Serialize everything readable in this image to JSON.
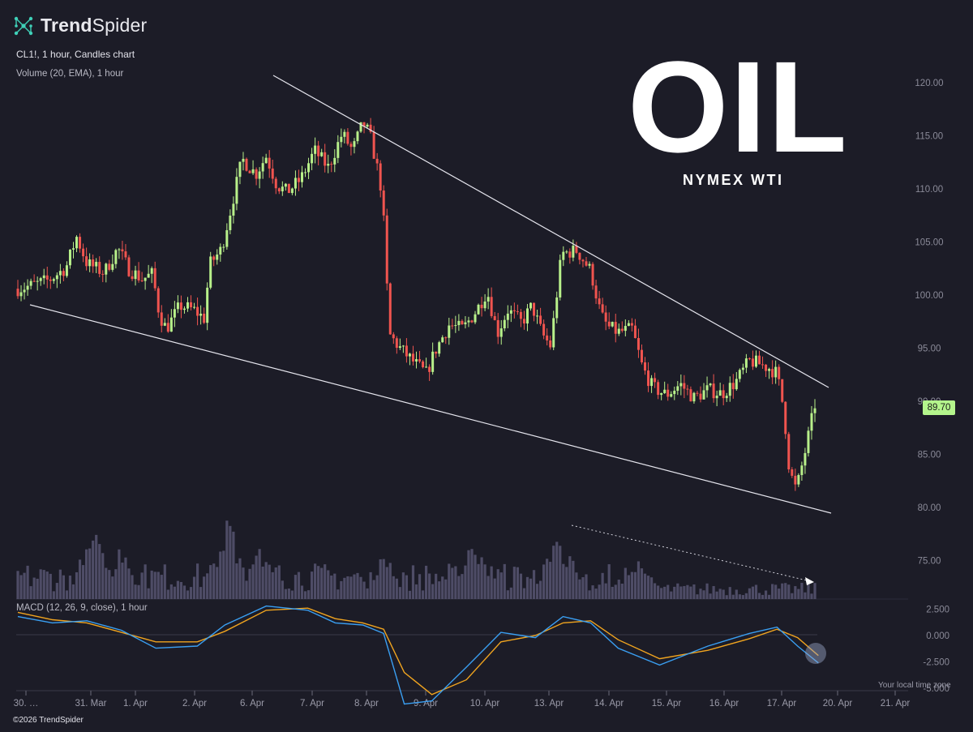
{
  "brand": {
    "name_bold": "Trend",
    "name_light": "Spider",
    "logo_icon": "trendspider-network-icon"
  },
  "header": {
    "symbol_info": "CL1!, 1 hour, Candles chart",
    "volume_info": "Volume (20, EMA), 1 hour"
  },
  "overlay": {
    "title": "OIL",
    "subtitle": "NYMEX WTI"
  },
  "macd_label": "MACD (12, 26, 9, close), 1 hour",
  "local_time_label": "Your local time zone",
  "copyright": "©2026 TrendSpider",
  "last_price": "89.70",
  "colors": {
    "background": "#1c1c27",
    "bull": "#b8f08a",
    "bear": "#f0544f",
    "volume": "#4e4c66",
    "macd_line": "#3a9ff2",
    "signal_line": "#f0a41f",
    "trendline": "#e6e6ee"
  },
  "chart_data": [
    {
      "type": "candlestick",
      "symbol": "CL1!",
      "interval": "1 hour",
      "y_axis": {
        "range": [
          72,
          122
        ],
        "ticks": [
          "120.00",
          "115.00",
          "110.00",
          "105.00",
          "100.00",
          "95.00",
          "90.00",
          "85.00",
          "80.00",
          "75.00"
        ]
      },
      "x_axis": {
        "ticks": [
          "30. …",
          "31. Mar",
          "1. Apr",
          "2. Apr",
          "6. Apr",
          "7. Apr",
          "8. Apr",
          "9. Apr",
          "10. Apr",
          "13. Apr",
          "14. Apr",
          "15. Apr",
          "16. Apr",
          "17. Apr",
          "20. Apr",
          "21. Apr"
        ]
      },
      "price_path_day_index_close": [
        [
          0.0,
          100.6
        ],
        [
          0.2,
          100.9
        ],
        [
          0.45,
          101.4
        ],
        [
          0.7,
          102.6
        ],
        [
          0.85,
          105.5
        ],
        [
          1.0,
          103.0
        ],
        [
          1.25,
          102.1
        ],
        [
          1.45,
          104.4
        ],
        [
          1.6,
          102.5
        ],
        [
          1.8,
          101.5
        ],
        [
          1.95,
          102.0
        ],
        [
          2.05,
          98.2
        ],
        [
          2.15,
          96.8
        ],
        [
          2.35,
          99.0
        ],
        [
          2.55,
          98.6
        ],
        [
          2.7,
          97.8
        ],
        [
          2.78,
          102.9
        ],
        [
          2.95,
          104.3
        ],
        [
          3.1,
          108.5
        ],
        [
          3.25,
          112.8
        ],
        [
          3.45,
          111.4
        ],
        [
          3.6,
          113.1
        ],
        [
          3.75,
          110.4
        ],
        [
          3.9,
          109.7
        ],
        [
          4.1,
          110.9
        ],
        [
          4.3,
          113.6
        ],
        [
          4.5,
          112.0
        ],
        [
          4.7,
          115.2
        ],
        [
          4.85,
          113.6
        ],
        [
          5.0,
          116.2
        ],
        [
          5.1,
          115.1
        ],
        [
          5.2,
          112.2
        ],
        [
          5.28,
          109.5
        ],
        [
          5.33,
          103.4
        ],
        [
          5.38,
          96.3
        ],
        [
          5.55,
          94.9
        ],
        [
          5.75,
          93.6
        ],
        [
          5.92,
          92.6
        ],
        [
          6.05,
          94.8
        ],
        [
          6.25,
          97.2
        ],
        [
          6.45,
          96.8
        ],
        [
          6.65,
          98.6
        ],
        [
          6.8,
          100.4
        ],
        [
          6.95,
          96.4
        ],
        [
          7.1,
          98.6
        ],
        [
          7.3,
          97.4
        ],
        [
          7.45,
          99.0
        ],
        [
          7.6,
          96.3
        ],
        [
          7.72,
          95.2
        ],
        [
          7.88,
          103.9
        ],
        [
          8.1,
          104.2
        ],
        [
          8.3,
          102.3
        ],
        [
          8.45,
          98.1
        ],
        [
          8.55,
          97.0
        ],
        [
          8.7,
          96.5
        ],
        [
          8.9,
          96.8
        ],
        [
          9.05,
          93.2
        ],
        [
          9.2,
          91.3
        ],
        [
          9.4,
          90.6
        ],
        [
          9.6,
          91.6
        ],
        [
          9.8,
          90.3
        ],
        [
          10.0,
          91.1
        ],
        [
          10.2,
          90.7
        ],
        [
          10.4,
          91.8
        ],
        [
          10.6,
          93.8
        ],
        [
          10.75,
          93.5
        ],
        [
          10.9,
          93.1
        ],
        [
          11.0,
          92.6
        ],
        [
          11.1,
          89.2
        ],
        [
          11.18,
          83.5
        ],
        [
          11.28,
          81.6
        ],
        [
          11.4,
          85.0
        ],
        [
          11.55,
          89.7
        ]
      ],
      "last_price": 89.7,
      "annotations": [
        "descending upper trendline",
        "descending lower trendline",
        "dotted downward arrow over volume"
      ]
    },
    {
      "type": "bar",
      "name": "Volume (20, EMA)",
      "note": "relative volume bars, peaks on 31 Mar, 1 Apr, 6 Apr, 9 Apr, 13 Apr"
    },
    {
      "type": "line",
      "name": "MACD (12, 26, 9, close)",
      "y_axis": {
        "ticks": [
          "2.500",
          "0.000",
          "-2.500",
          "-5.000"
        ]
      },
      "macd_day_index_value": [
        [
          0.0,
          1.8
        ],
        [
          0.5,
          1.2
        ],
        [
          1.0,
          1.4
        ],
        [
          1.5,
          0.5
        ],
        [
          2.0,
          -1.2
        ],
        [
          2.6,
          -1.0
        ],
        [
          3.0,
          1.0
        ],
        [
          3.6,
          2.8
        ],
        [
          4.2,
          2.4
        ],
        [
          4.6,
          1.2
        ],
        [
          5.0,
          1.0
        ],
        [
          5.3,
          0.2
        ],
        [
          5.6,
          -6.5
        ],
        [
          6.0,
          -6.2
        ],
        [
          6.5,
          -3.0
        ],
        [
          7.0,
          0.3
        ],
        [
          7.5,
          -0.2
        ],
        [
          7.9,
          1.8
        ],
        [
          8.3,
          1.2
        ],
        [
          8.7,
          -1.2
        ],
        [
          9.3,
          -2.8
        ],
        [
          10.0,
          -1.0
        ],
        [
          10.6,
          0.2
        ],
        [
          11.0,
          0.8
        ],
        [
          11.3,
          -1.0
        ],
        [
          11.6,
          -2.6
        ]
      ],
      "signal_day_index_value": [
        [
          0.0,
          2.2
        ],
        [
          0.5,
          1.5
        ],
        [
          1.0,
          1.2
        ],
        [
          1.5,
          0.3
        ],
        [
          2.0,
          -0.6
        ],
        [
          2.6,
          -0.6
        ],
        [
          3.0,
          0.4
        ],
        [
          3.6,
          2.4
        ],
        [
          4.2,
          2.6
        ],
        [
          4.6,
          1.6
        ],
        [
          5.0,
          1.2
        ],
        [
          5.3,
          0.6
        ],
        [
          5.6,
          -3.5
        ],
        [
          6.0,
          -5.6
        ],
        [
          6.5,
          -4.2
        ],
        [
          7.0,
          -0.6
        ],
        [
          7.5,
          0.0
        ],
        [
          7.9,
          1.2
        ],
        [
          8.3,
          1.4
        ],
        [
          8.7,
          -0.4
        ],
        [
          9.3,
          -2.2
        ],
        [
          10.0,
          -1.4
        ],
        [
          10.6,
          -0.3
        ],
        [
          11.0,
          0.6
        ],
        [
          11.3,
          -0.2
        ],
        [
          11.6,
          -1.9
        ]
      ]
    }
  ]
}
